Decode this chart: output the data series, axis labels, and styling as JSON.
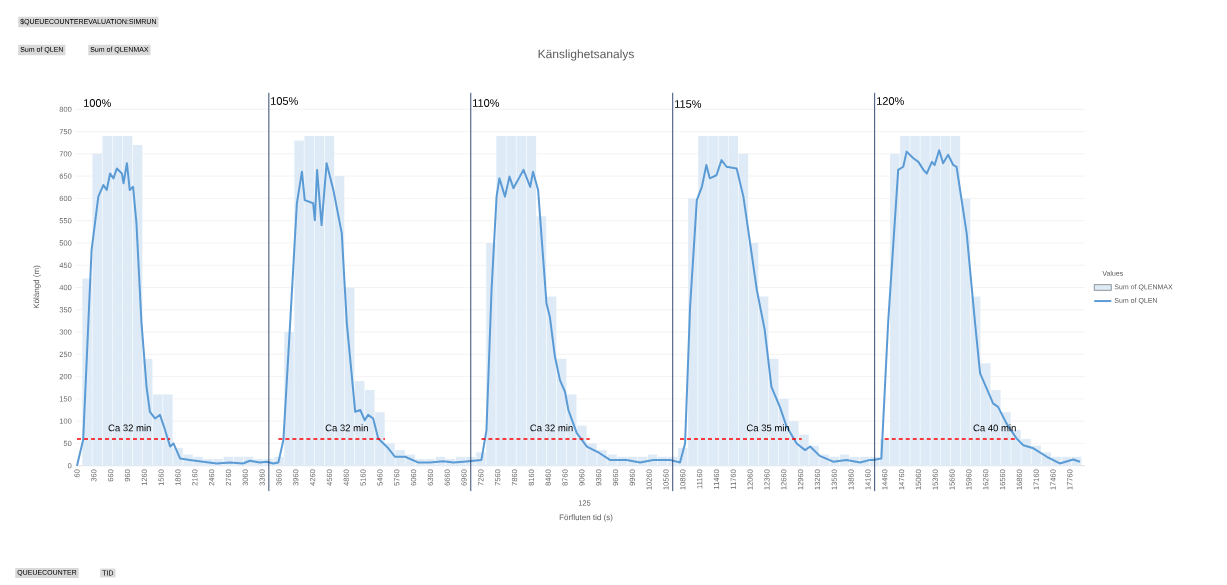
{
  "chart_data": {
    "type": "line",
    "title": "Känslighetsanalys",
    "xlabel": "Förfluten tid (s)",
    "ylabel": "Kölängd (m)",
    "legend_title": "Values",
    "xlim": [
      30,
      18030
    ],
    "ylim": [
      0,
      800
    ],
    "xticks": [
      60,
      360,
      660,
      960,
      1260,
      1560,
      1860,
      2160,
      2460,
      2760,
      3060,
      3360,
      3660,
      3960,
      4260,
      4560,
      4860,
      5160,
      5460,
      5760,
      6060,
      6360,
      6660,
      6960,
      7260,
      7560,
      7860,
      8160,
      8460,
      8760,
      9060,
      9360,
      9660,
      9960,
      10260,
      10560,
      10860,
      11160,
      11460,
      11760,
      12060,
      12360,
      12660,
      12960,
      13260,
      13560,
      13860,
      14160,
      14460,
      14760,
      15060,
      15360,
      15660,
      15960,
      16260,
      16560,
      16860,
      17160,
      17460,
      17760
    ],
    "yticks": [
      0,
      50,
      100,
      150,
      200,
      250,
      300,
      350,
      400,
      450,
      500,
      550,
      600,
      650,
      700,
      750,
      800
    ],
    "grid": "y",
    "legend": "right",
    "series": [
      {
        "name": "Sum of QLENMAX",
        "type": "bar",
        "color": "#deebf7",
        "x": [
          60,
          240,
          420,
          600,
          780,
          960,
          1140,
          1320,
          1500,
          1680,
          1860,
          2040,
          2220,
          2400,
          2580,
          2760,
          2940,
          3120,
          3300,
          3480,
          3660,
          3840,
          4020,
          4200,
          4380,
          4560,
          4740,
          4920,
          5100,
          5280,
          5460,
          5640,
          5820,
          6000,
          6180,
          6360,
          6540,
          6720,
          6900,
          7080,
          7260,
          7440,
          7620,
          7800,
          7980,
          8160,
          8340,
          8520,
          8700,
          8880,
          9060,
          9240,
          9420,
          9600,
          9780,
          9960,
          10140,
          10320,
          10500,
          10680,
          10860,
          11040,
          11220,
          11400,
          11580,
          11760,
          11940,
          12120,
          12300,
          12480,
          12660,
          12840,
          13020,
          13200,
          13380,
          13560,
          13740,
          13920,
          14100,
          14280,
          14460,
          14640,
          14820,
          15000,
          15180,
          15360,
          15540,
          15720,
          15900,
          16080,
          16260,
          16440,
          16620,
          16800,
          16980,
          17160,
          17340,
          17520,
          17700,
          17880
        ],
        "values": [
          0,
          420,
          700,
          740,
          740,
          740,
          720,
          240,
          160,
          160,
          40,
          25,
          20,
          15,
          15,
          20,
          20,
          20,
          15,
          15,
          20,
          300,
          730,
          740,
          740,
          740,
          650,
          400,
          190,
          170,
          120,
          50,
          35,
          25,
          15,
          15,
          20,
          15,
          20,
          20,
          30,
          500,
          740,
          740,
          740,
          740,
          560,
          380,
          240,
          160,
          90,
          50,
          35,
          25,
          20,
          20,
          20,
          25,
          20,
          20,
          40,
          600,
          740,
          740,
          740,
          740,
          700,
          500,
          380,
          240,
          150,
          100,
          70,
          45,
          25,
          20,
          25,
          20,
          20,
          20,
          60,
          700,
          740,
          740,
          740,
          740,
          740,
          740,
          600,
          380,
          230,
          170,
          120,
          80,
          60,
          45,
          30,
          20,
          20,
          20
        ]
      },
      {
        "name": "Sum of QLEN",
        "color": "#5b9bd5",
        "x": [
          60,
          170,
          320,
          440,
          530,
          590,
          650,
          710,
          770,
          860,
          890,
          950,
          1000,
          1060,
          1120,
          1210,
          1300,
          1360,
          1450,
          1540,
          1630,
          1720,
          1780,
          1900,
          2070,
          2310,
          2550,
          2790,
          3020,
          3140,
          3320,
          3440,
          3560,
          3650,
          3740,
          3860,
          3980,
          4070,
          4120,
          4270,
          4300,
          4340,
          4420,
          4510,
          4630,
          4780,
          4870,
          5020,
          5110,
          5190,
          5250,
          5340,
          5430,
          5610,
          5730,
          5910,
          6150,
          6350,
          6590,
          6770,
          6950,
          7270,
          7360,
          7450,
          7540,
          7590,
          7690,
          7770,
          7840,
          8020,
          8140,
          8190,
          8280,
          8430,
          8490,
          8580,
          8670,
          8760,
          8820,
          8970,
          9150,
          9380,
          9560,
          9860,
          10100,
          10330,
          10630,
          10810,
          10900,
          10990,
          11110,
          11200,
          11280,
          11340,
          11460,
          11550,
          11640,
          11820,
          11940,
          12120,
          12180,
          12320,
          12440,
          12590,
          12710,
          12890,
          13040,
          13130,
          13300,
          13540,
          13780,
          14020,
          14200,
          14250,
          14400,
          14520,
          14700,
          14790,
          14850,
          14970,
          15060,
          15150,
          15210,
          15300,
          15350,
          15430,
          15500,
          15590,
          15680,
          15740,
          15920,
          16070,
          16160,
          16340,
          16390,
          16480,
          16630,
          16810,
          16930,
          17110,
          17350,
          17580,
          17820,
          17940
        ],
        "values": [
          0,
          58,
          484,
          604,
          630,
          619,
          656,
          645,
          667,
          656,
          634,
          679,
          619,
          626,
          544,
          320,
          177,
          121,
          106,
          114,
          80,
          43,
          50,
          16,
          13,
          9,
          5,
          7,
          5,
          11,
          7,
          9,
          5,
          7,
          58,
          320,
          589,
          660,
          596,
          589,
          551,
          664,
          540,
          679,
          619,
          522,
          320,
          121,
          125,
          102,
          114,
          106,
          61,
          39,
          20,
          20,
          7,
          7,
          10,
          7,
          9,
          13,
          80,
          394,
          604,
          645,
          604,
          649,
          623,
          664,
          626,
          660,
          619,
          364,
          334,
          245,
          192,
          166,
          125,
          73,
          43,
          28,
          13,
          13,
          7,
          13,
          13,
          7,
          50,
          357,
          596,
          626,
          675,
          645,
          652,
          686,
          671,
          667,
          604,
          447,
          394,
          305,
          177,
          132,
          88,
          50,
          35,
          43,
          22,
          9,
          13,
          7,
          13,
          13,
          16,
          320,
          664,
          671,
          705,
          690,
          682,
          664,
          656,
          682,
          675,
          708,
          679,
          698,
          675,
          671,
          522,
          320,
          207,
          155,
          140,
          132,
          95,
          61,
          46,
          39,
          20,
          5,
          14,
          9
        ]
      },
      {
        "type": "line",
        "color": "#ff0000",
        "line_style": "dashed",
        "x": [
          60,
          1720
        ],
        "values": [
          60,
          60
        ]
      },
      {
        "type": "line",
        "color": "#ff0000",
        "line_style": "dashed",
        "x": [
          3650,
          5550
        ],
        "values": [
          60,
          60
        ]
      },
      {
        "type": "line",
        "color": "#ff0000",
        "line_style": "dashed",
        "x": [
          7270,
          9200
        ],
        "values": [
          60,
          60
        ]
      },
      {
        "type": "line",
        "color": "#ff0000",
        "line_style": "dashed",
        "x": [
          10810,
          12980
        ],
        "values": [
          60,
          60
        ]
      },
      {
        "type": "line",
        "color": "#ff0000",
        "line_style": "dashed",
        "x": [
          14460,
          16810
        ],
        "values": [
          60,
          60
        ]
      }
    ],
    "ref_lines": [
      {
        "axis": "x",
        "value": 3480,
        "color": "#1f3864"
      },
      {
        "axis": "x",
        "value": 7080,
        "color": "#1f3864"
      },
      {
        "axis": "x",
        "value": 10680,
        "color": "#1f3864"
      },
      {
        "axis": "x",
        "value": 14280,
        "color": "#1f3864"
      }
    ],
    "annotations": [
      "100%",
      "105%",
      "110%",
      "115%",
      "120%",
      {
        "text": "Ca 32 min",
        "x": 1000,
        "y": 85
      },
      {
        "text": "Ca 32 min",
        "x": 4870,
        "y": 85
      },
      {
        "text": "Ca 32 min",
        "x": 8520,
        "y": 85
      },
      {
        "text": "Ca 35 min",
        "x": 12380,
        "y": 85
      },
      {
        "text": "Ca 40 min",
        "x": 16420,
        "y": 85
      },
      "$QUEUECOUNTEREVALUATION:SIMRUN",
      "Sum of QLEN",
      "Sum of QLENMAX",
      "125",
      "QUEUECOUNTER",
      "TID"
    ]
  }
}
